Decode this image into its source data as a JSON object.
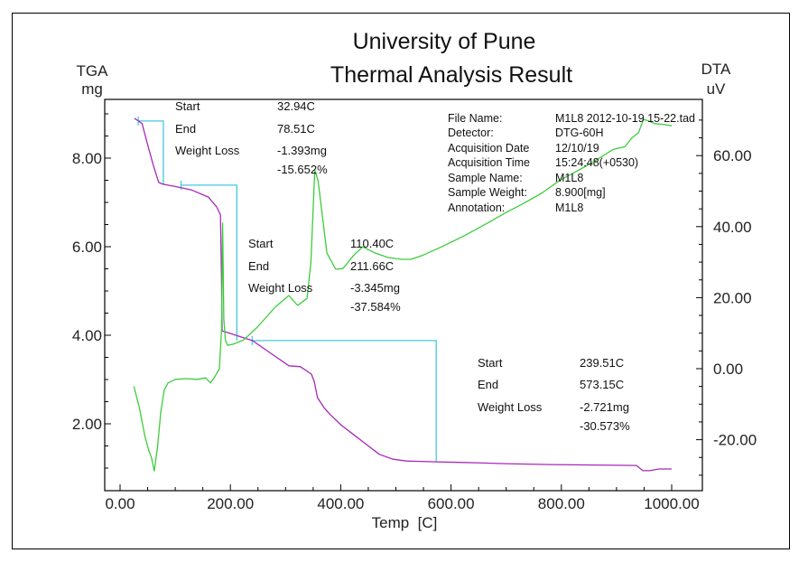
{
  "chart_data": {
    "type": "line",
    "title": [
      "University of Pune",
      "Thermal Analysis Result"
    ],
    "xlabel": "Temp  [C]",
    "xlim": [
      -30,
      1055
    ],
    "xticks": [
      0,
      200,
      400,
      600,
      800,
      1000
    ],
    "xtick_labels": [
      "0.00",
      "200.00",
      "400.00",
      "600.00",
      "800.00",
      "1000.00"
    ],
    "y_left": {
      "label_line1": "TGA",
      "label_line2": "mg",
      "lim": [
        0.5,
        9.3
      ],
      "ticks": [
        2,
        4,
        6,
        8
      ],
      "tick_labels": [
        "2.00",
        "4.00",
        "6.00",
        "8.00"
      ]
    },
    "y_right": {
      "label_line1": "DTA",
      "label_line2": "uV",
      "lim": [
        -34,
        75
      ],
      "ticks": [
        -20,
        0,
        20,
        40,
        60
      ],
      "tick_labels": [
        "-20.00",
        "0.00",
        "20.00",
        "40.00",
        "60.00"
      ]
    },
    "grid": false,
    "series": [
      {
        "name": "TGA",
        "axis": "left",
        "color": "#a828b8",
        "x": [
          26,
          31,
          40,
          50,
          60,
          70,
          78,
          100,
          130,
          160,
          175,
          182,
          184,
          185,
          200,
          220,
          240,
          270,
          306,
          327,
          347,
          352,
          358,
          370,
          380,
          400,
          421,
          445,
          470,
          495,
          519,
          545,
          573,
          645,
          700,
          780,
          860,
          936,
          948,
          960,
          977,
          1000
        ],
        "y": [
          8.9,
          8.86,
          8.78,
          8.3,
          7.85,
          7.45,
          7.41,
          7.36,
          7.28,
          7.12,
          6.9,
          6.72,
          5.2,
          4.1,
          4.04,
          3.96,
          3.88,
          3.62,
          3.31,
          3.29,
          3.12,
          2.95,
          2.59,
          2.36,
          2.22,
          1.98,
          1.78,
          1.55,
          1.31,
          1.2,
          1.16,
          1.15,
          1.14,
          1.12,
          1.1,
          1.08,
          1.07,
          1.06,
          0.94,
          0.94,
          0.98,
          0.98
        ]
      },
      {
        "name": "DTA",
        "axis": "right",
        "color": "#3ccc3c",
        "x": [
          25,
          35,
          45,
          52,
          57,
          62,
          68,
          74,
          80,
          87,
          100,
          120,
          140,
          155,
          164,
          172,
          180,
          184,
          186,
          188,
          191,
          195,
          205,
          224,
          249,
          281,
          306,
          322,
          339,
          346,
          353,
          359,
          365,
          375,
          391,
          404,
          424,
          440,
          462,
          486,
          511,
          527,
          550,
          584,
          625,
          666,
          700,
          732,
          765,
          797,
          850,
          895,
          915,
          928,
          940,
          949,
          958,
          969,
          985,
          1000
        ],
        "y": [
          -5,
          -11,
          -19,
          -23,
          -25,
          -28.8,
          -22,
          -12,
          -6,
          -4,
          -3,
          -2.8,
          -3,
          -2.6,
          -4,
          -2.2,
          0,
          11,
          41,
          14,
          8,
          6.6,
          6.9,
          8.1,
          11.7,
          17.3,
          20.6,
          17.8,
          19.8,
          30,
          56,
          53,
          45.3,
          32.6,
          28,
          28.2,
          32,
          34.3,
          32.6,
          31.3,
          30.8,
          30.8,
          32,
          34.4,
          37.5,
          41,
          44,
          46.6,
          49.5,
          53,
          57.5,
          61.8,
          62.5,
          65,
          66.5,
          70.2,
          69.8,
          69,
          68.8,
          68.4
        ]
      }
    ],
    "step_lines": {
      "color": "#44c8dc",
      "segments": [
        {
          "start_T": 32.94,
          "end_T": 78.51,
          "top_mg": 8.84,
          "bottom_mg": 7.39
        },
        {
          "start_T": 110.4,
          "end_T": 211.66,
          "top_mg": 7.39,
          "bottom_mg": 3.88
        },
        {
          "start_T": 239.51,
          "end_T": 573.15,
          "top_mg": 3.88,
          "bottom_mg": 1.14
        }
      ]
    },
    "annotations": [
      {
        "start_label": "Start",
        "start_value": "32.94C",
        "end_label": "End",
        "end_value": "78.51C",
        "loss_label": "Weight Loss",
        "loss_mg": "-1.393mg",
        "loss_pct": "-15.652%"
      },
      {
        "start_label": "Start",
        "start_value": "110.40C",
        "end_label": "End",
        "end_value": "211.66C",
        "loss_label": "Weight Loss",
        "loss_mg": "-3.345mg",
        "loss_pct": "-37.584%"
      },
      {
        "start_label": "Start",
        "start_value": "239.51C",
        "end_label": "End",
        "end_value": "573.15C",
        "loss_label": "Weight Loss",
        "loss_mg": "-2.721mg",
        "loss_pct": "-30.573%"
      }
    ],
    "file_info": [
      {
        "label": "File Name:",
        "value": "M1L8 2012-10-19 15-22.tad"
      },
      {
        "label": "Detector:",
        "value": "DTG-60H"
      },
      {
        "label": "Acquisition Date",
        "value": "12/10/19"
      },
      {
        "label": "Acquisition Time",
        "value": "15:24:48(+0530)"
      },
      {
        "label": "Sample Name:",
        "value": "M1L8"
      },
      {
        "label": "Sample Weight:",
        "value": "8.900[mg]"
      },
      {
        "label": "Annotation:",
        "value": "M1L8"
      }
    ]
  }
}
